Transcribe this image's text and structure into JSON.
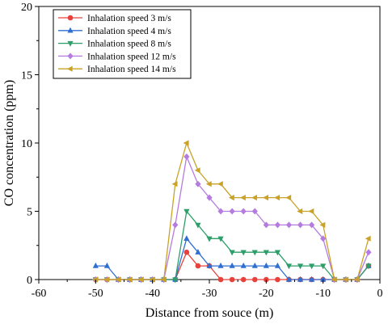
{
  "chart_data": {
    "type": "line",
    "xlabel": "Distance from souce (m)",
    "ylabel": "CO concentration (ppm)",
    "xlim": [
      -60,
      0
    ],
    "ylim": [
      0,
      20
    ],
    "xticks": [
      "-60",
      "-50",
      "-40",
      "-30",
      "-20",
      "-10",
      "0"
    ],
    "yticks": [
      "0",
      "5",
      "10",
      "15",
      "20"
    ],
    "grid": false,
    "legend_position": "top-left",
    "x": [
      -50,
      -48,
      -46,
      -44,
      -42,
      -40,
      -38,
      -36,
      -34,
      -32,
      -30,
      -28,
      -26,
      -24,
      -22,
      -20,
      -18,
      -16,
      -14,
      -12,
      -10,
      -8,
      -6,
      -4,
      -2
    ],
    "series": [
      {
        "name": "Inhalation speed 3 m/s",
        "color": "#e8413c",
        "marker": "circle",
        "values": [
          0,
          0,
          0,
          0,
          0,
          0,
          0,
          0,
          2,
          1,
          1,
          0,
          0,
          0,
          0,
          0,
          0,
          0,
          0,
          0,
          0,
          0,
          0,
          0,
          1
        ]
      },
      {
        "name": "Inhalation speed 4 m/s",
        "color": "#2f6fd1",
        "marker": "triangle-up",
        "values": [
          1,
          1,
          0,
          0,
          0,
          0,
          0,
          0,
          3,
          2,
          1,
          1,
          1,
          1,
          1,
          1,
          1,
          0,
          0,
          0,
          0,
          0,
          0,
          0,
          1
        ]
      },
      {
        "name": "Inhalation speed 8 m/s",
        "color": "#2e9e6a",
        "marker": "triangle-down",
        "values": [
          0,
          0,
          0,
          0,
          0,
          0,
          0,
          0,
          5,
          4,
          3,
          3,
          2,
          2,
          2,
          2,
          2,
          1,
          1,
          1,
          1,
          0,
          0,
          0,
          1
        ]
      },
      {
        "name": "Inhalation speed 12 m/s",
        "color": "#b57be0",
        "marker": "diamond",
        "values": [
          0,
          0,
          0,
          0,
          0,
          0,
          0,
          4,
          9,
          7,
          6,
          5,
          5,
          5,
          5,
          4,
          4,
          4,
          4,
          4,
          3,
          0,
          0,
          0,
          2
        ]
      },
      {
        "name": "Inhalation speed 14 m/s",
        "color": "#c9a227",
        "marker": "triangle-left",
        "values": [
          0,
          0,
          0,
          0,
          0,
          0,
          0,
          7,
          10,
          8,
          7,
          7,
          6,
          6,
          6,
          6,
          6,
          6,
          5,
          5,
          4,
          0,
          0,
          0,
          3
        ]
      }
    ]
  }
}
